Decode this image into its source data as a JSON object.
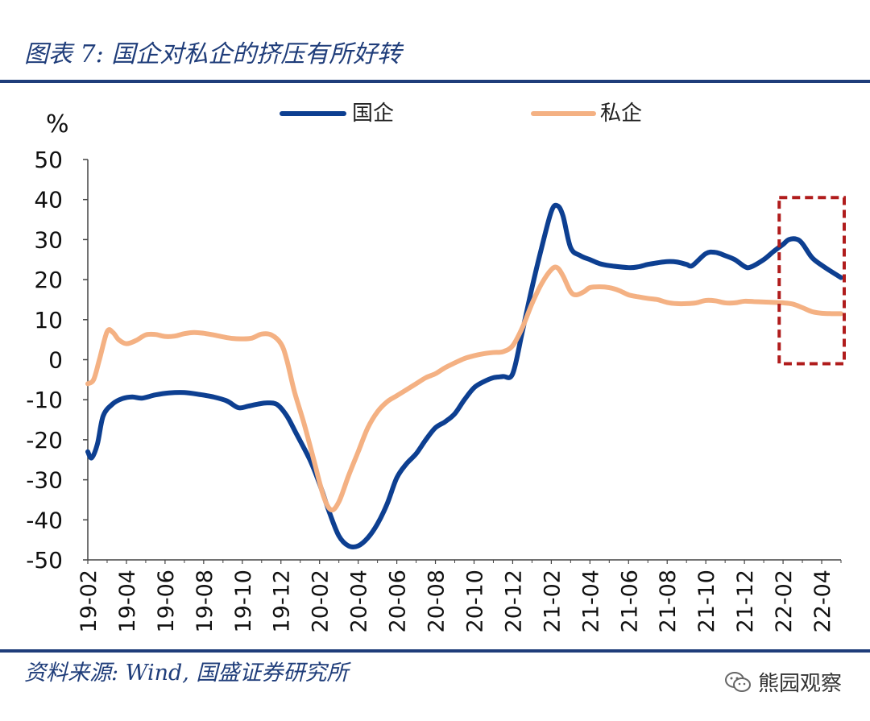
{
  "header": {
    "title": "图表 7:  国企对私企的挤压有所好转"
  },
  "footer": {
    "source": "资料来源:  Wind,  国盛证券研究所",
    "watermark": "熊园观察"
  },
  "colors": {
    "soe": "#0d3f91",
    "private": "#f4b183",
    "highlight": "#b01c1c",
    "title": "#1f3d7a"
  },
  "chart_data": {
    "type": "line",
    "title": "国企对私企的挤压有所好转",
    "ylabel": "%",
    "ylim": [
      -50,
      50
    ],
    "yticks": [
      50,
      40,
      30,
      20,
      10,
      0,
      -10,
      -20,
      -30,
      -40,
      -50
    ],
    "x_tick_labels": [
      "19-02",
      "19-04",
      "19-06",
      "19-08",
      "19-10",
      "19-12",
      "20-02",
      "20-04",
      "20-06",
      "20-08",
      "20-10",
      "20-12",
      "21-02",
      "21-04",
      "21-06",
      "21-08",
      "21-10",
      "21-12",
      "22-02",
      "22-04"
    ],
    "x_start": "19-02",
    "x_end": "22-04",
    "legend_position": "top-center",
    "annotation": "dashed box over 22-02 to 22-04",
    "series": [
      {
        "name": "国企",
        "color_key": "soe",
        "points": [
          [
            0,
            -23
          ],
          [
            0.2,
            -24.5
          ],
          [
            0.5,
            -21
          ],
          [
            0.8,
            -14
          ],
          [
            1.3,
            -11
          ],
          [
            1.8,
            -9.7
          ],
          [
            2.3,
            -9.3
          ],
          [
            2.8,
            -9.6
          ],
          [
            3.5,
            -8.8
          ],
          [
            4.2,
            -8.3
          ],
          [
            5,
            -8.2
          ],
          [
            5.8,
            -8.7
          ],
          [
            6.5,
            -9.3
          ],
          [
            7.2,
            -10.3
          ],
          [
            7.8,
            -12
          ],
          [
            8.3,
            -11.6
          ],
          [
            8.8,
            -11.1
          ],
          [
            9.3,
            -10.8
          ],
          [
            9.8,
            -11.2
          ],
          [
            10.3,
            -14
          ],
          [
            10.8,
            -18.5
          ],
          [
            11.5,
            -25
          ],
          [
            12,
            -31
          ],
          [
            12.5,
            -38
          ],
          [
            13,
            -44
          ],
          [
            13.5,
            -46.5
          ],
          [
            14,
            -46.5
          ],
          [
            14.5,
            -44.5
          ],
          [
            15,
            -41
          ],
          [
            15.5,
            -36
          ],
          [
            16,
            -29.5
          ],
          [
            16.5,
            -26
          ],
          [
            17,
            -23.5
          ],
          [
            17.5,
            -20
          ],
          [
            18,
            -17
          ],
          [
            18.5,
            -15.5
          ],
          [
            19,
            -13.5
          ],
          [
            19.5,
            -10
          ],
          [
            20,
            -7
          ],
          [
            20.5,
            -5.5
          ],
          [
            21,
            -4.5
          ],
          [
            21.5,
            -4.2
          ],
          [
            22,
            -3.5
          ],
          [
            22.5,
            7
          ],
          [
            23,
            18
          ],
          [
            23.5,
            28
          ],
          [
            24,
            37
          ],
          [
            24.3,
            38.5
          ],
          [
            24.6,
            36
          ],
          [
            25,
            28
          ],
          [
            25.5,
            26
          ],
          [
            26,
            25
          ],
          [
            26.5,
            24
          ],
          [
            27,
            23.5
          ],
          [
            28,
            23
          ],
          [
            28.5,
            23.2
          ],
          [
            29,
            23.8
          ],
          [
            29.5,
            24.2
          ],
          [
            30,
            24.5
          ],
          [
            30.5,
            24.4
          ],
          [
            31,
            23.8
          ],
          [
            31.3,
            23.5
          ],
          [
            32,
            26.5
          ],
          [
            32.5,
            26.8
          ],
          [
            33,
            26
          ],
          [
            33.5,
            25
          ],
          [
            34,
            23.3
          ],
          [
            34.3,
            23.1
          ],
          [
            35,
            25
          ],
          [
            35.5,
            27
          ],
          [
            36,
            28.8
          ],
          [
            36.3,
            30
          ],
          [
            36.7,
            30.1
          ],
          [
            37,
            29
          ],
          [
            37.5,
            25.5
          ],
          [
            38,
            23.6
          ],
          [
            38.5,
            22
          ],
          [
            39,
            20.5
          ]
        ]
      },
      {
        "name": "私企",
        "color_key": "private",
        "points": [
          [
            0,
            -6
          ],
          [
            0.3,
            -5
          ],
          [
            0.6,
            0
          ],
          [
            1,
            7
          ],
          [
            1.3,
            6.8
          ],
          [
            1.6,
            5
          ],
          [
            2,
            4
          ],
          [
            2.5,
            4.8
          ],
          [
            3,
            6.2
          ],
          [
            3.5,
            6.3
          ],
          [
            4,
            5.8
          ],
          [
            4.5,
            5.9
          ],
          [
            5,
            6.5
          ],
          [
            5.5,
            6.8
          ],
          [
            6,
            6.6
          ],
          [
            6.5,
            6.2
          ],
          [
            7,
            5.7
          ],
          [
            7.5,
            5.3
          ],
          [
            8,
            5.2
          ],
          [
            8.5,
            5.4
          ],
          [
            9,
            6.4
          ],
          [
            9.5,
            6.2
          ],
          [
            10,
            4
          ],
          [
            10.3,
            0
          ],
          [
            10.7,
            -8
          ],
          [
            11.2,
            -16
          ],
          [
            11.7,
            -25
          ],
          [
            12.2,
            -34
          ],
          [
            12.6,
            -37.5
          ],
          [
            13,
            -35.5
          ],
          [
            13.5,
            -29
          ],
          [
            14,
            -23
          ],
          [
            14.5,
            -17
          ],
          [
            15,
            -13
          ],
          [
            15.5,
            -10.5
          ],
          [
            16,
            -9
          ],
          [
            16.5,
            -7.5
          ],
          [
            17,
            -6
          ],
          [
            17.5,
            -4.5
          ],
          [
            18,
            -3.5
          ],
          [
            18.5,
            -2
          ],
          [
            19,
            -0.8
          ],
          [
            19.5,
            0.3
          ],
          [
            20,
            1
          ],
          [
            20.5,
            1.5
          ],
          [
            21,
            1.8
          ],
          [
            21.5,
            2
          ],
          [
            22,
            3.5
          ],
          [
            22.5,
            8
          ],
          [
            23,
            14
          ],
          [
            23.5,
            19
          ],
          [
            24,
            22.5
          ],
          [
            24.3,
            23
          ],
          [
            24.6,
            21
          ],
          [
            25,
            17
          ],
          [
            25.3,
            16.2
          ],
          [
            25.7,
            17
          ],
          [
            26,
            18
          ],
          [
            26.5,
            18.2
          ],
          [
            27,
            18
          ],
          [
            27.5,
            17.3
          ],
          [
            28,
            16.2
          ],
          [
            28.5,
            15.7
          ],
          [
            29,
            15.3
          ],
          [
            29.5,
            15
          ],
          [
            30,
            14.3
          ],
          [
            30.5,
            14
          ],
          [
            31,
            14
          ],
          [
            31.5,
            14.2
          ],
          [
            32,
            14.8
          ],
          [
            32.5,
            14.7
          ],
          [
            33,
            14.2
          ],
          [
            33.5,
            14.2
          ],
          [
            34,
            14.6
          ],
          [
            34.5,
            14.5
          ],
          [
            35,
            14.4
          ],
          [
            35.5,
            14.3
          ],
          [
            36,
            14.2
          ],
          [
            36.5,
            13.9
          ],
          [
            37,
            13
          ],
          [
            37.5,
            12
          ],
          [
            38,
            11.6
          ],
          [
            38.5,
            11.5
          ],
          [
            39,
            11.5
          ]
        ]
      }
    ]
  }
}
